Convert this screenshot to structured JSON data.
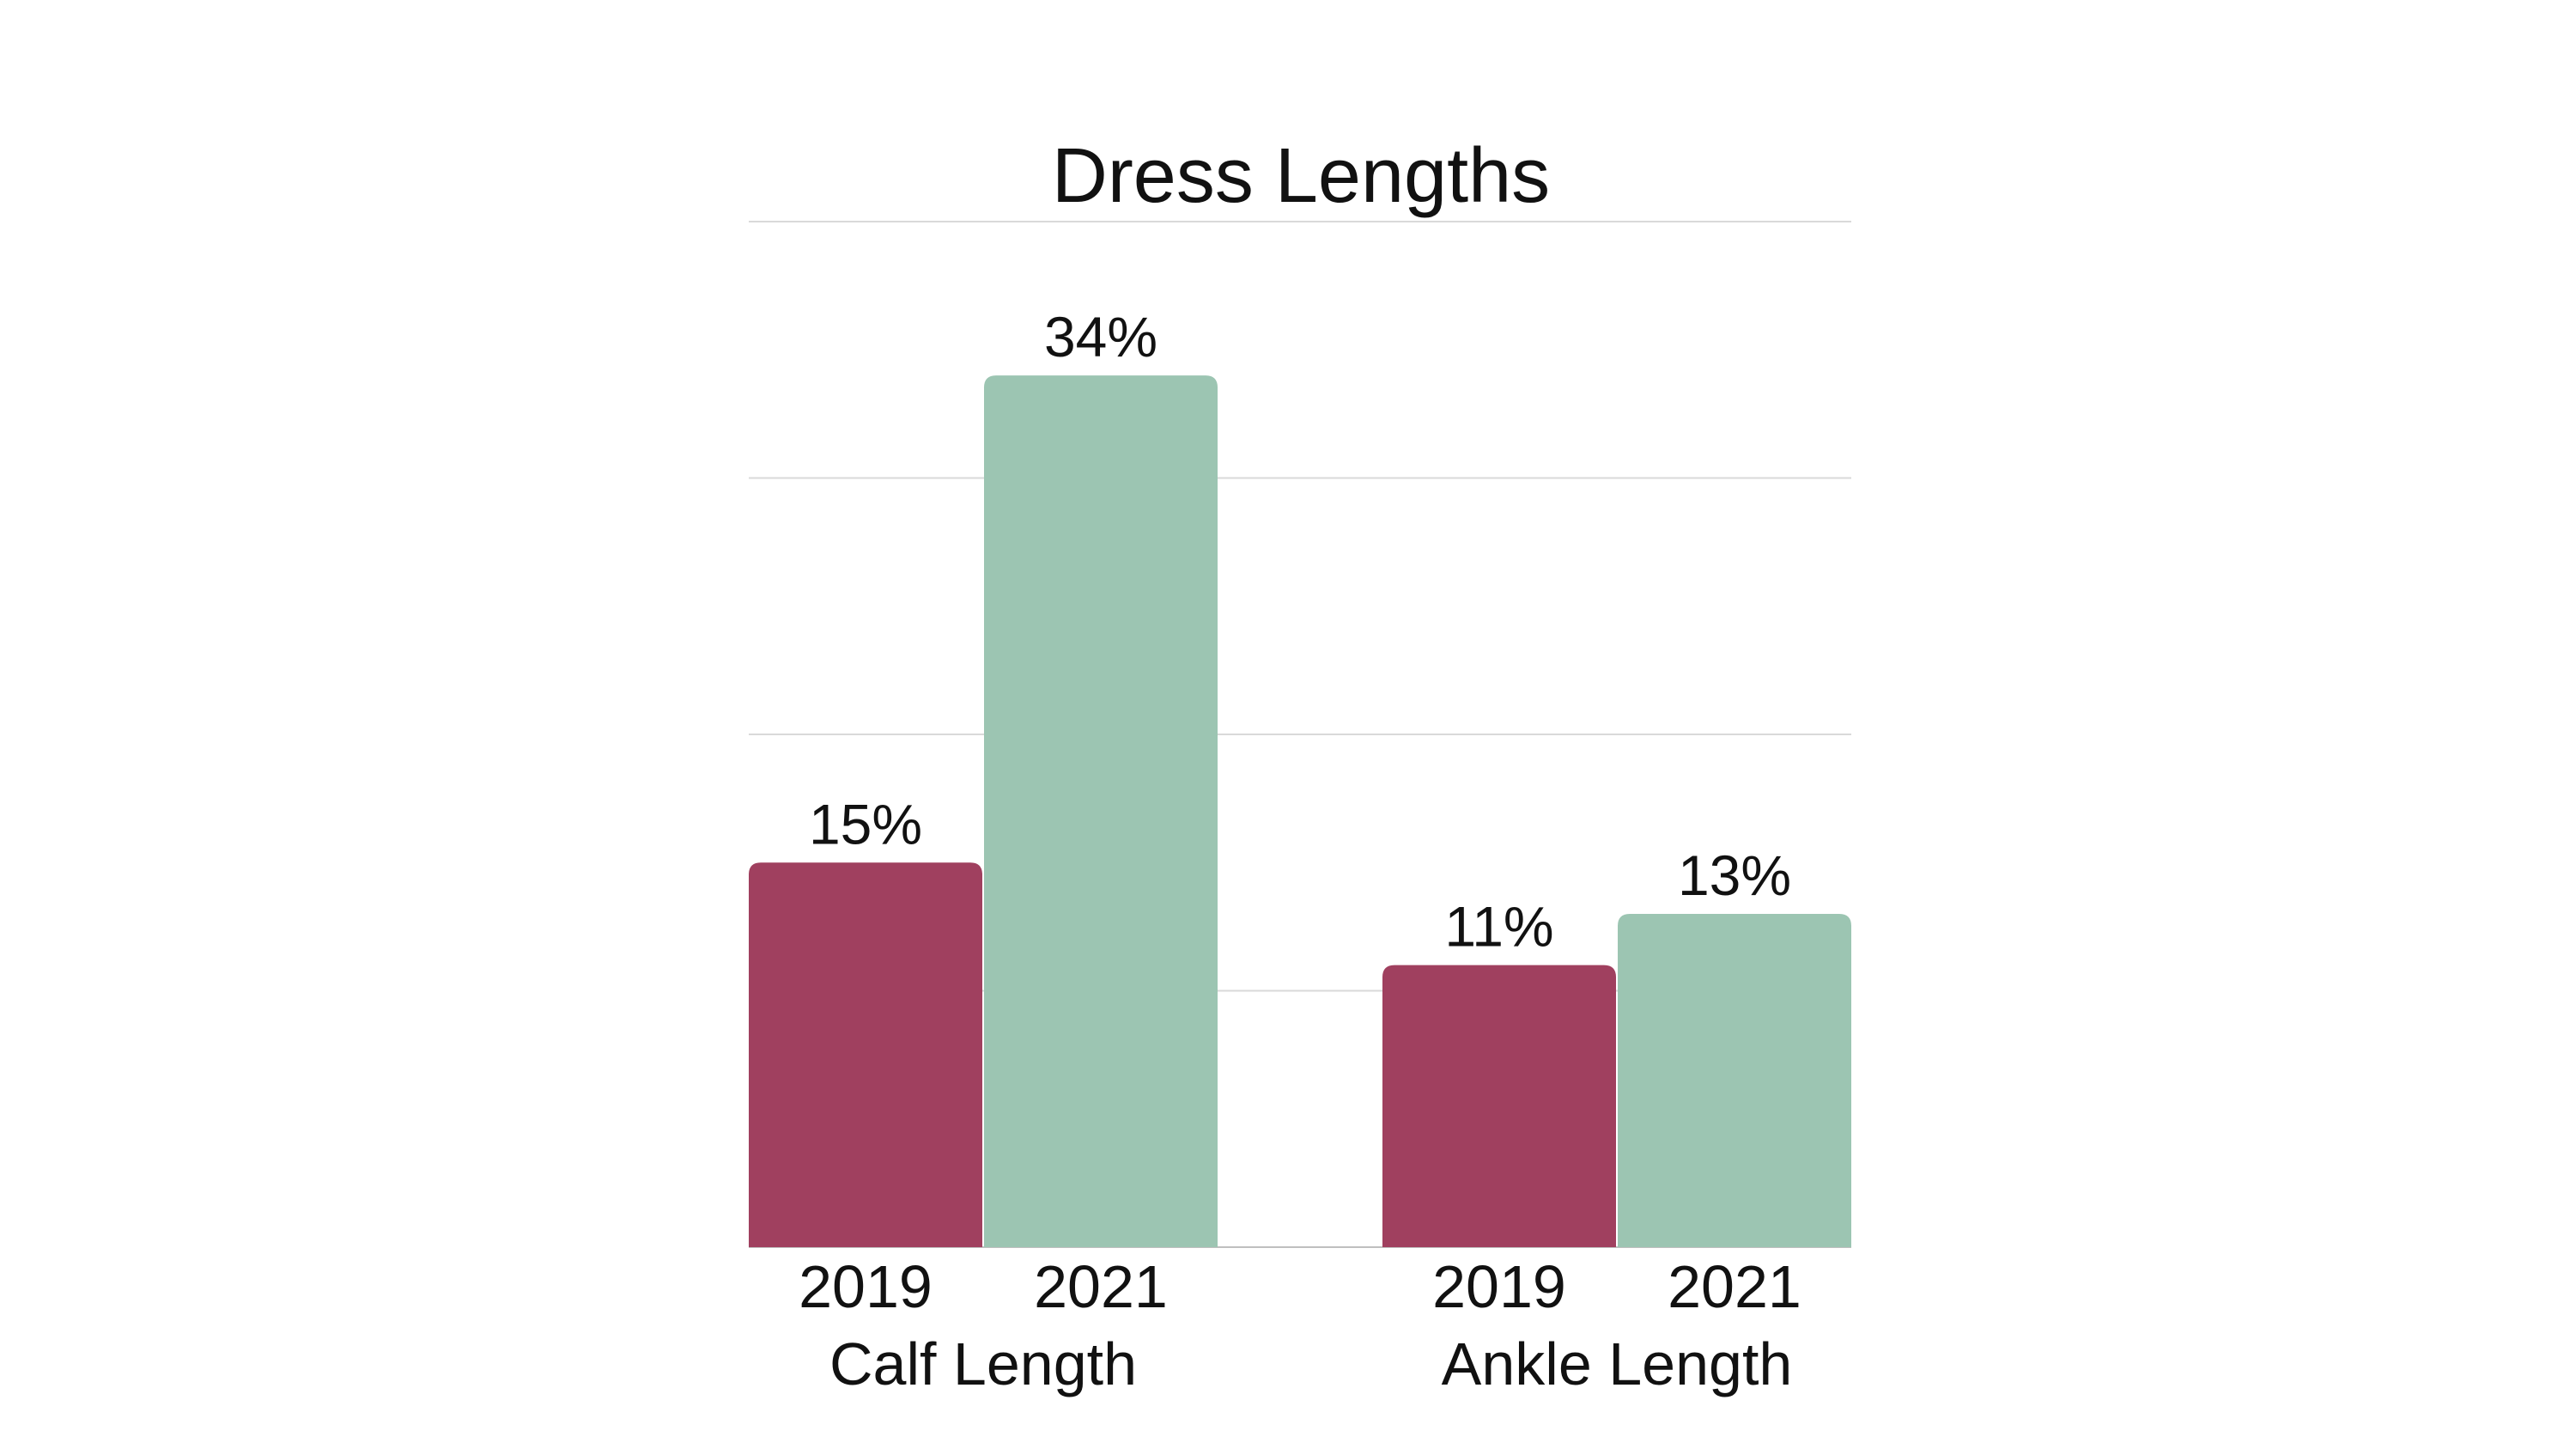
{
  "chart_data": {
    "type": "bar",
    "title": "Dress Lengths",
    "categories": [
      "Calf Length",
      "Ankle Length"
    ],
    "series": [
      {
        "label": "2019",
        "color": "#a0405f",
        "values": [
          15,
          11
        ]
      },
      {
        "label": "2021",
        "color": "#9cc5b2",
        "values": [
          34,
          13
        ]
      }
    ],
    "value_labels": [
      [
        "15%",
        "11%"
      ],
      [
        "34%",
        "13%"
      ]
    ],
    "ylim": [
      0,
      40
    ],
    "grid": true,
    "y_gridlines": [
      10,
      20,
      30,
      40
    ],
    "xlabel": "",
    "ylabel": ""
  }
}
